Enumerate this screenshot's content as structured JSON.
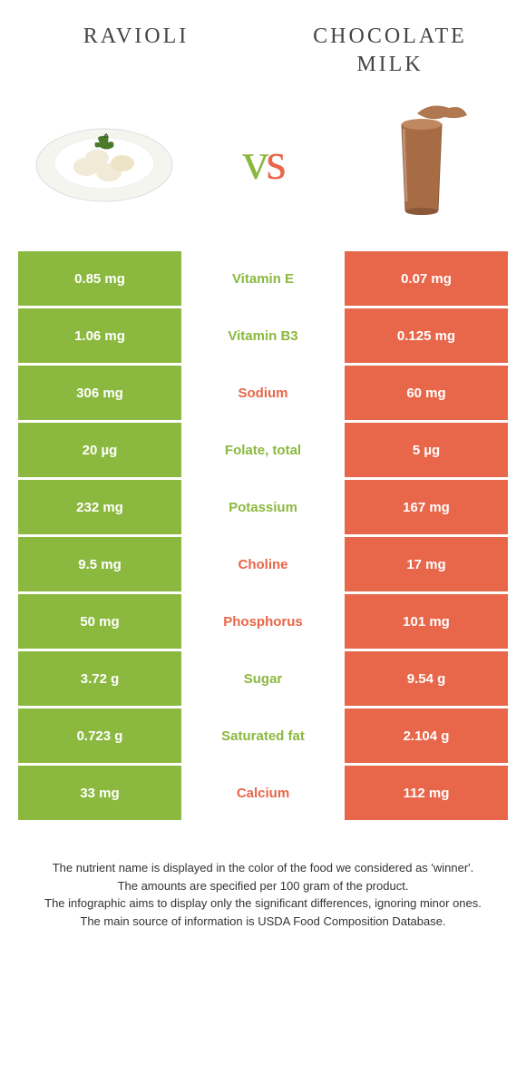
{
  "header": {
    "left_title": "Ravioli",
    "right_title": "Chocolate milk",
    "vs_v": "v",
    "vs_s": "s"
  },
  "colors": {
    "green": "#8bb83f",
    "orange": "#e8664a",
    "text": "#333333",
    "bg": "#ffffff"
  },
  "table": {
    "rows": [
      {
        "left": "0.85 mg",
        "label": "Vitamin E",
        "winner": "green",
        "right": "0.07 mg"
      },
      {
        "left": "1.06 mg",
        "label": "Vitamin B3",
        "winner": "green",
        "right": "0.125 mg"
      },
      {
        "left": "306 mg",
        "label": "Sodium",
        "winner": "orange",
        "right": "60 mg"
      },
      {
        "left": "20 µg",
        "label": "Folate, total",
        "winner": "green",
        "right": "5 µg"
      },
      {
        "left": "232 mg",
        "label": "Potassium",
        "winner": "green",
        "right": "167 mg"
      },
      {
        "left": "9.5 mg",
        "label": "Choline",
        "winner": "orange",
        "right": "17 mg"
      },
      {
        "left": "50 mg",
        "label": "Phosphorus",
        "winner": "orange",
        "right": "101 mg"
      },
      {
        "left": "3.72 g",
        "label": "Sugar",
        "winner": "green",
        "right": "9.54 g"
      },
      {
        "left": "0.723 g",
        "label": "Saturated fat",
        "winner": "green",
        "right": "2.104 g"
      },
      {
        "left": "33 mg",
        "label": "Calcium",
        "winner": "orange",
        "right": "112 mg"
      }
    ]
  },
  "footer": {
    "line1": "The nutrient name is displayed in the color of the food we considered as 'winner'.",
    "line2": "The amounts are specified per 100 gram of the product.",
    "line3": "The infographic aims to display only the significant differences, ignoring minor ones.",
    "line4": "The main source of information is USDA Food Composition Database."
  }
}
